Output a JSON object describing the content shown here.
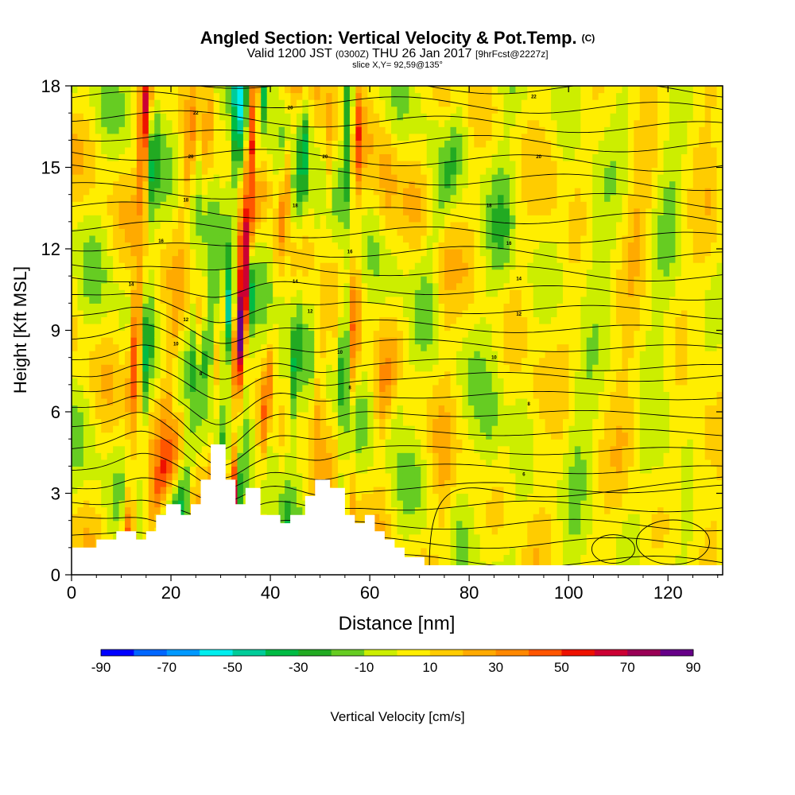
{
  "title": {
    "main": "Angled Section: Vertical Velocity & Pot.Temp.",
    "unit": "(C)",
    "valid_prefix": "Valid 1200 JST",
    "valid_utc": "(0300Z)",
    "valid_date": "THU 26 Jan 2017",
    "forecast": "[9hrFcst@2227z]",
    "slice": "slice X,Y= 92,59@135°"
  },
  "chart_data": {
    "type": "heatmap",
    "xlabel": "Distance [nm]",
    "ylabel": "Height [Kft MSL]",
    "xlim": [
      0,
      131
    ],
    "ylim": [
      0,
      18
    ],
    "xticks": [
      0,
      20,
      40,
      60,
      80,
      100,
      120
    ],
    "yticks": [
      0,
      3,
      6,
      9,
      12,
      15,
      18
    ],
    "colorbar": {
      "label": "Vertical Velocity [cm/s]",
      "tick_labels": [
        -90,
        -70,
        -50,
        -30,
        -10,
        10,
        30,
        50,
        70,
        90
      ],
      "bins": [
        -90,
        -80,
        -70,
        -60,
        -50,
        -40,
        -30,
        -20,
        -10,
        0,
        10,
        20,
        30,
        40,
        50,
        60,
        70,
        80,
        90
      ],
      "colors": [
        "#0000ff",
        "#0066ff",
        "#0099ff",
        "#00eeee",
        "#00cc99",
        "#00bb44",
        "#22aa22",
        "#66cc22",
        "#ccee00",
        "#ffee00",
        "#ffcc00",
        "#ffaa00",
        "#ff8800",
        "#ff5500",
        "#ee1100",
        "#cc0033",
        "#990055",
        "#660088"
      ]
    },
    "terrain": [
      [
        0,
        1.0
      ],
      [
        5,
        1.0
      ],
      [
        5,
        1.3
      ],
      [
        9,
        1.3
      ],
      [
        9,
        1.6
      ],
      [
        13,
        1.6
      ],
      [
        13,
        1.3
      ],
      [
        15,
        1.3
      ],
      [
        15,
        1.6
      ],
      [
        17,
        1.6
      ],
      [
        17,
        2.2
      ],
      [
        19,
        2.2
      ],
      [
        19,
        2.6
      ],
      [
        22,
        2.6
      ],
      [
        22,
        2.2
      ],
      [
        24,
        2.2
      ],
      [
        24,
        2.6
      ],
      [
        26,
        2.6
      ],
      [
        26,
        3.5
      ],
      [
        28,
        3.5
      ],
      [
        28,
        4.8
      ],
      [
        31,
        4.8
      ],
      [
        31,
        3.5
      ],
      [
        33,
        3.5
      ],
      [
        33,
        2.6
      ],
      [
        35,
        2.6
      ],
      [
        35,
        3.2
      ],
      [
        38,
        3.2
      ],
      [
        38,
        2.2
      ],
      [
        42,
        2.2
      ],
      [
        42,
        1.9
      ],
      [
        44,
        1.9
      ],
      [
        44,
        2.2
      ],
      [
        47,
        2.2
      ],
      [
        47,
        2.9
      ],
      [
        49,
        2.9
      ],
      [
        49,
        3.5
      ],
      [
        52,
        3.5
      ],
      [
        52,
        3.2
      ],
      [
        55,
        3.2
      ],
      [
        55,
        2.2
      ],
      [
        57,
        2.2
      ],
      [
        57,
        1.9
      ],
      [
        59,
        1.9
      ],
      [
        59,
        2.2
      ],
      [
        61,
        2.2
      ],
      [
        61,
        1.6
      ],
      [
        63,
        1.6
      ],
      [
        63,
        1.3
      ],
      [
        65,
        1.3
      ],
      [
        65,
        1.0
      ],
      [
        67,
        1.0
      ],
      [
        67,
        0.65
      ],
      [
        71,
        0.65
      ],
      [
        71,
        0.35
      ],
      [
        131,
        0.35
      ]
    ],
    "isentrope_labels": [
      {
        "text": "22",
        "x": 25,
        "y": 17.0
      },
      {
        "text": "20",
        "x": 44,
        "y": 17.2
      },
      {
        "text": "22",
        "x": 93,
        "y": 17.6
      },
      {
        "text": "20",
        "x": 24,
        "y": 15.4
      },
      {
        "text": "20",
        "x": 51,
        "y": 15.4
      },
      {
        "text": "20",
        "x": 94,
        "y": 15.4
      },
      {
        "text": "18",
        "x": 23,
        "y": 13.8
      },
      {
        "text": "18",
        "x": 45,
        "y": 13.6
      },
      {
        "text": "18",
        "x": 84,
        "y": 13.6
      },
      {
        "text": "16",
        "x": 18,
        "y": 12.3
      },
      {
        "text": "16",
        "x": 56,
        "y": 11.9
      },
      {
        "text": "16",
        "x": 88,
        "y": 12.2
      },
      {
        "text": "14",
        "x": 12,
        "y": 10.7
      },
      {
        "text": "14",
        "x": 45,
        "y": 10.8
      },
      {
        "text": "14",
        "x": 90,
        "y": 10.9
      },
      {
        "text": "12",
        "x": 23,
        "y": 9.4
      },
      {
        "text": "12",
        "x": 48,
        "y": 9.7
      },
      {
        "text": "12",
        "x": 90,
        "y": 9.6
      },
      {
        "text": "10",
        "x": 21,
        "y": 8.5
      },
      {
        "text": "10",
        "x": 54,
        "y": 8.2
      },
      {
        "text": "10",
        "x": 85,
        "y": 8.0
      },
      {
        "text": "8",
        "x": 26,
        "y": 7.4
      },
      {
        "text": "8",
        "x": 56,
        "y": 6.9
      },
      {
        "text": "8",
        "x": 92,
        "y": 6.3
      },
      {
        "text": "6",
        "x": 91,
        "y": 3.7
      }
    ]
  }
}
